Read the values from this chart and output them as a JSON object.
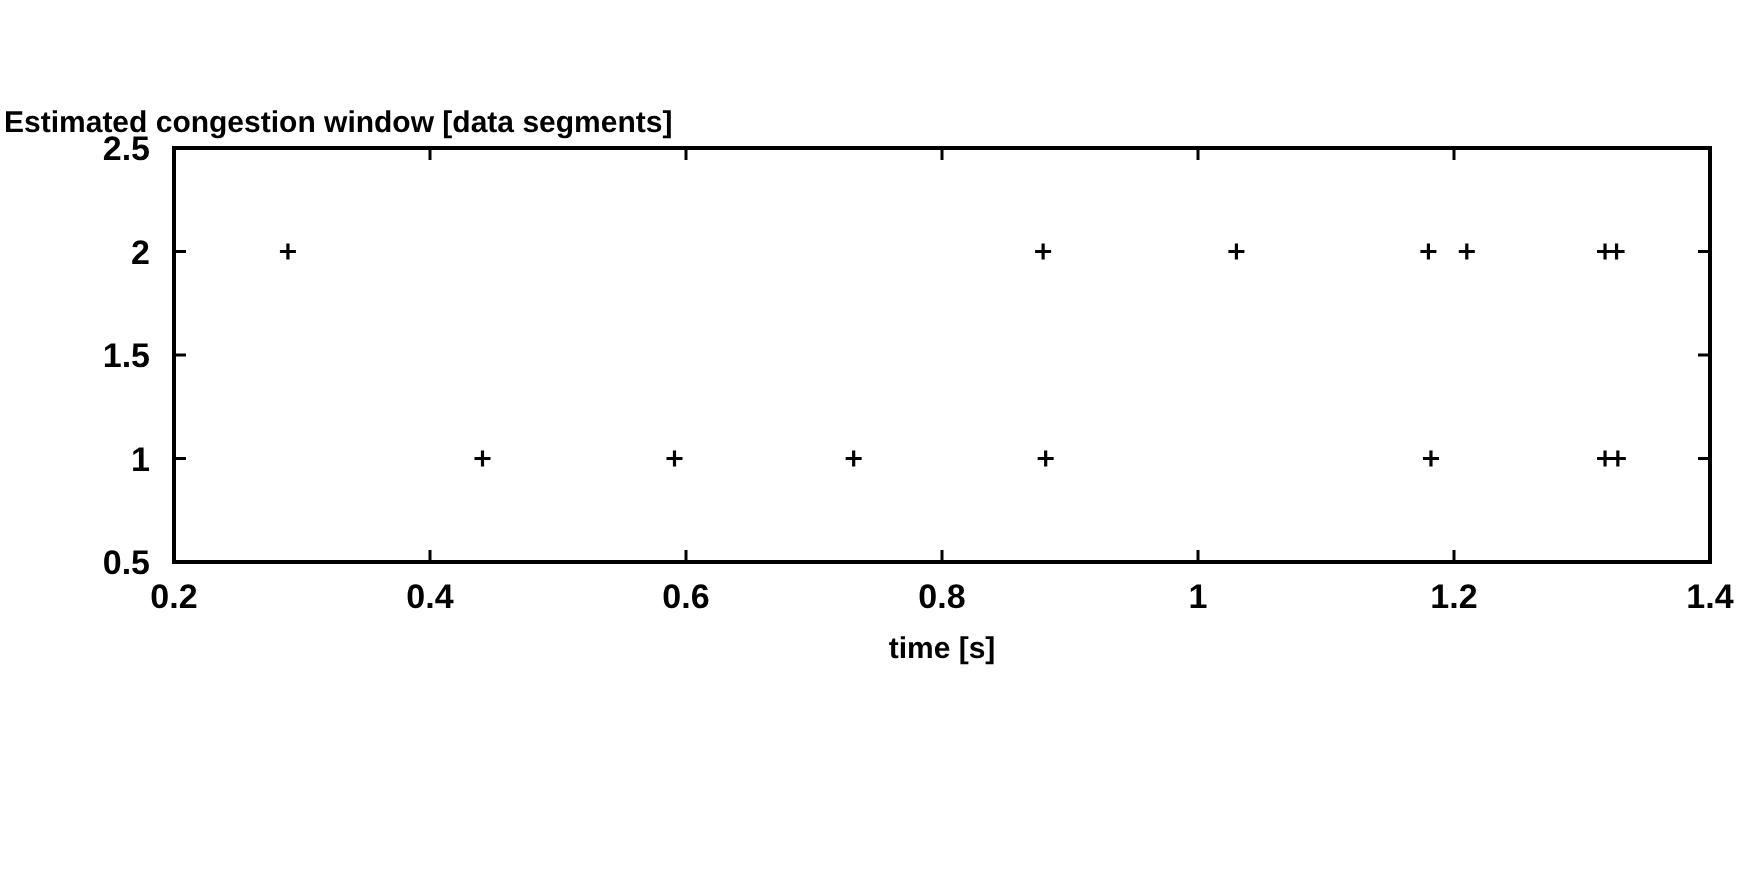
{
  "chart_data": {
    "type": "scatter",
    "ylabel": "Estimated congestion window [data segments]",
    "xlabel": "time [s]",
    "series": [
      {
        "color": "#000000",
        "x": [
          0.289,
          0.879,
          1.03,
          1.18,
          1.21,
          1.318,
          1.327,
          0.441,
          0.591,
          0.731,
          0.881,
          1.182,
          1.318,
          1.328
        ],
        "values": [
          2,
          2,
          2,
          2,
          2,
          2,
          2,
          1,
          1,
          1,
          1,
          1,
          1,
          1
        ]
      }
    ],
    "xlim": [
      0.2,
      1.4
    ],
    "xticks": [
      0.2,
      0.4,
      0.6,
      0.8,
      1,
      1.2,
      1.4
    ],
    "ylim": [
      0.5,
      2.5
    ],
    "yticks": [
      0.5,
      1,
      1.5,
      2,
      2.5
    ],
    "marker": "cross"
  }
}
